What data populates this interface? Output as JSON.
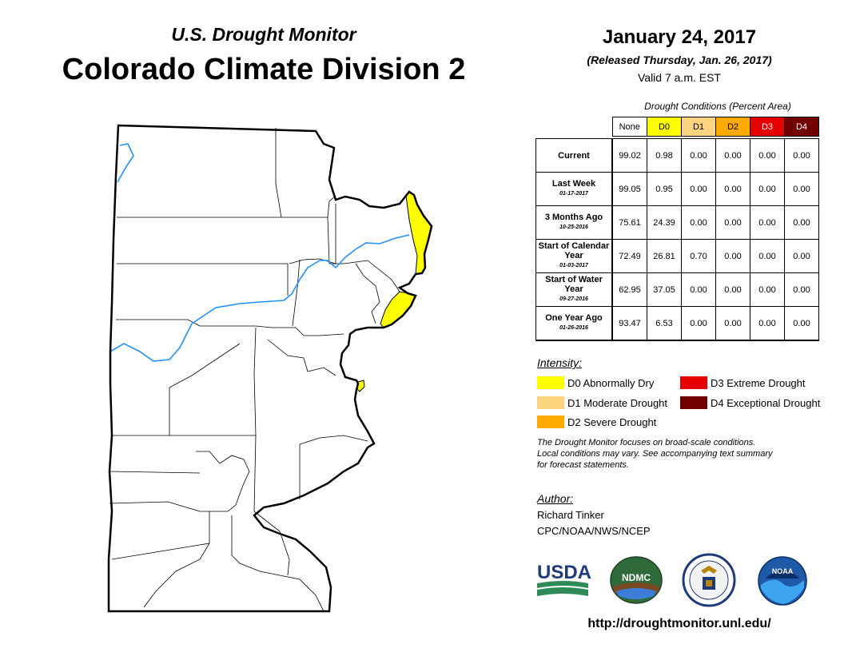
{
  "header": {
    "subtitle": "U.S. Drought Monitor",
    "title": "Colorado Climate Division 2",
    "date": "January 24, 2017",
    "released": "(Released Thursday, Jan. 26, 2017)",
    "valid": "Valid 7 a.m. EST"
  },
  "conditions": {
    "caption": "Drought Conditions (Percent Area)",
    "columns": [
      "None",
      "D0",
      "D1",
      "D2",
      "D3",
      "D4"
    ],
    "column_colors": [
      "#ffffff",
      "#ffff00",
      "#fcd37f",
      "#ffaa00",
      "#e60000",
      "#730000"
    ],
    "column_text_colors": [
      "#000000",
      "#000000",
      "#000000",
      "#000000",
      "#ffffff",
      "#ffffff"
    ],
    "rows": [
      {
        "label": "Current",
        "date": "",
        "values": [
          "99.02",
          "0.98",
          "0.00",
          "0.00",
          "0.00",
          "0.00"
        ]
      },
      {
        "label": "Last Week",
        "date": "01-17-2017",
        "values": [
          "99.05",
          "0.95",
          "0.00",
          "0.00",
          "0.00",
          "0.00"
        ]
      },
      {
        "label": "3 Months Ago",
        "date": "10-25-2016",
        "values": [
          "75.61",
          "24.39",
          "0.00",
          "0.00",
          "0.00",
          "0.00"
        ]
      },
      {
        "label": "Start of Calendar Year",
        "date": "01-03-2017",
        "values": [
          "72.49",
          "26.81",
          "0.70",
          "0.00",
          "0.00",
          "0.00"
        ]
      },
      {
        "label": "Start of Water Year",
        "date": "09-27-2016",
        "values": [
          "62.95",
          "37.05",
          "0.00",
          "0.00",
          "0.00",
          "0.00"
        ]
      },
      {
        "label": "One Year Ago",
        "date": "01-26-2016",
        "values": [
          "93.47",
          "6.53",
          "0.00",
          "0.00",
          "0.00",
          "0.00"
        ]
      }
    ]
  },
  "legend": {
    "title": "Intensity:",
    "items": [
      {
        "label": "D0 Abnormally Dry",
        "color": "#ffff00"
      },
      {
        "label": "D1 Moderate Drought",
        "color": "#fcd37f"
      },
      {
        "label": "D2 Severe Drought",
        "color": "#ffaa00"
      },
      {
        "label": "D3 Extreme Drought",
        "color": "#e60000"
      },
      {
        "label": "D4 Exceptional Drought",
        "color": "#730000"
      }
    ]
  },
  "note": {
    "line1": "The Drought Monitor focuses on broad-scale conditions.",
    "line2": "Local conditions may vary. See accompanying text summary",
    "line3": "for forecast statements."
  },
  "author": {
    "title": "Author:",
    "name": "Richard Tinker",
    "org": "CPC/NOAA/NWS/NCEP"
  },
  "logos": {
    "usda": "USDA",
    "ndmc": "NDMC",
    "noaa": "NOAA"
  },
  "url": "http://droughtmonitor.unl.edu/",
  "map": {
    "d0_color": "#ffff00",
    "river_color": "#1e90ff"
  }
}
